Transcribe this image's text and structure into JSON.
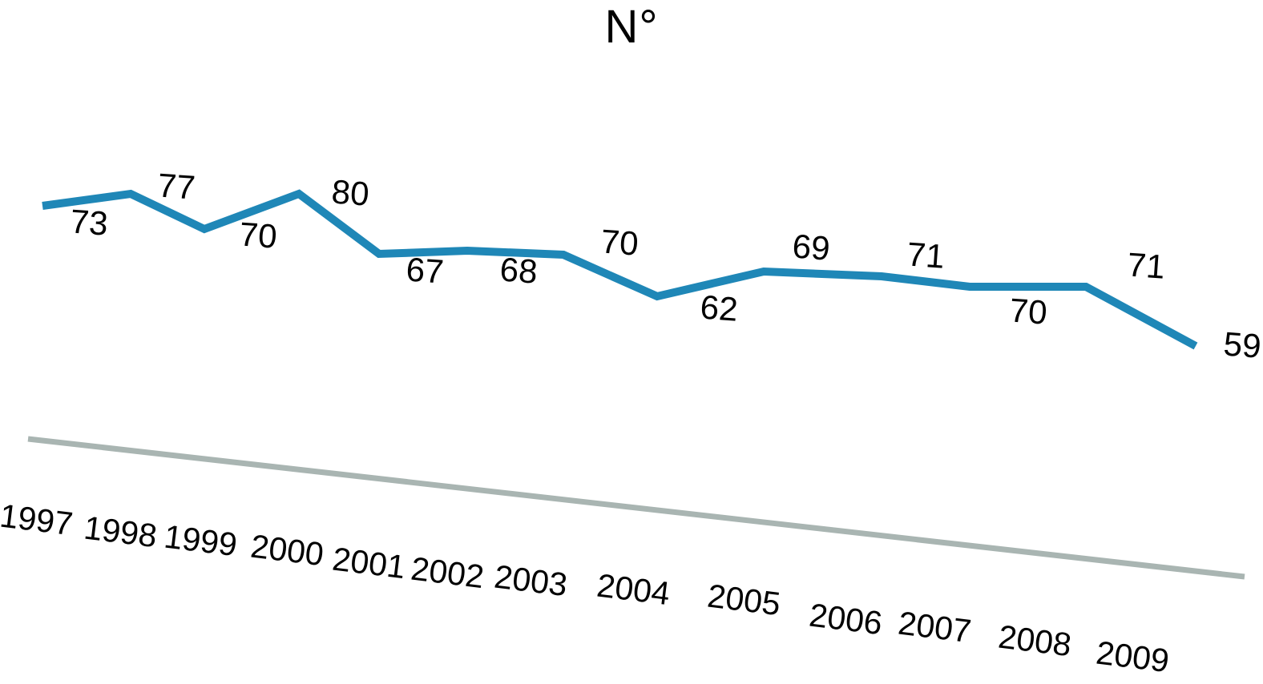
{
  "title": "N°",
  "chart_data": {
    "type": "line",
    "title": "N°",
    "categories": [
      "1997",
      "1998",
      "1999",
      "2000",
      "2001",
      "2002",
      "2003",
      "2004",
      "2005",
      "2006",
      "2007",
      "2008",
      "2009"
    ],
    "series": [
      {
        "name": "N°",
        "values": [
          73,
          77,
          70,
          80,
          67,
          68,
          70,
          62,
          69,
          71,
          70,
          71,
          59
        ]
      }
    ],
    "xlabel": "",
    "ylabel": "",
    "data_labels_visible": true,
    "grid": false,
    "legend": "none",
    "line_color": "#1f87b7",
    "axis_line_color": "#a9b5b2",
    "label_color": "#000000",
    "background_color": "#ffffff",
    "note_presentation": "chart rendered with a slight clockwise tilt; x-axis baseline slopes down to the right"
  }
}
